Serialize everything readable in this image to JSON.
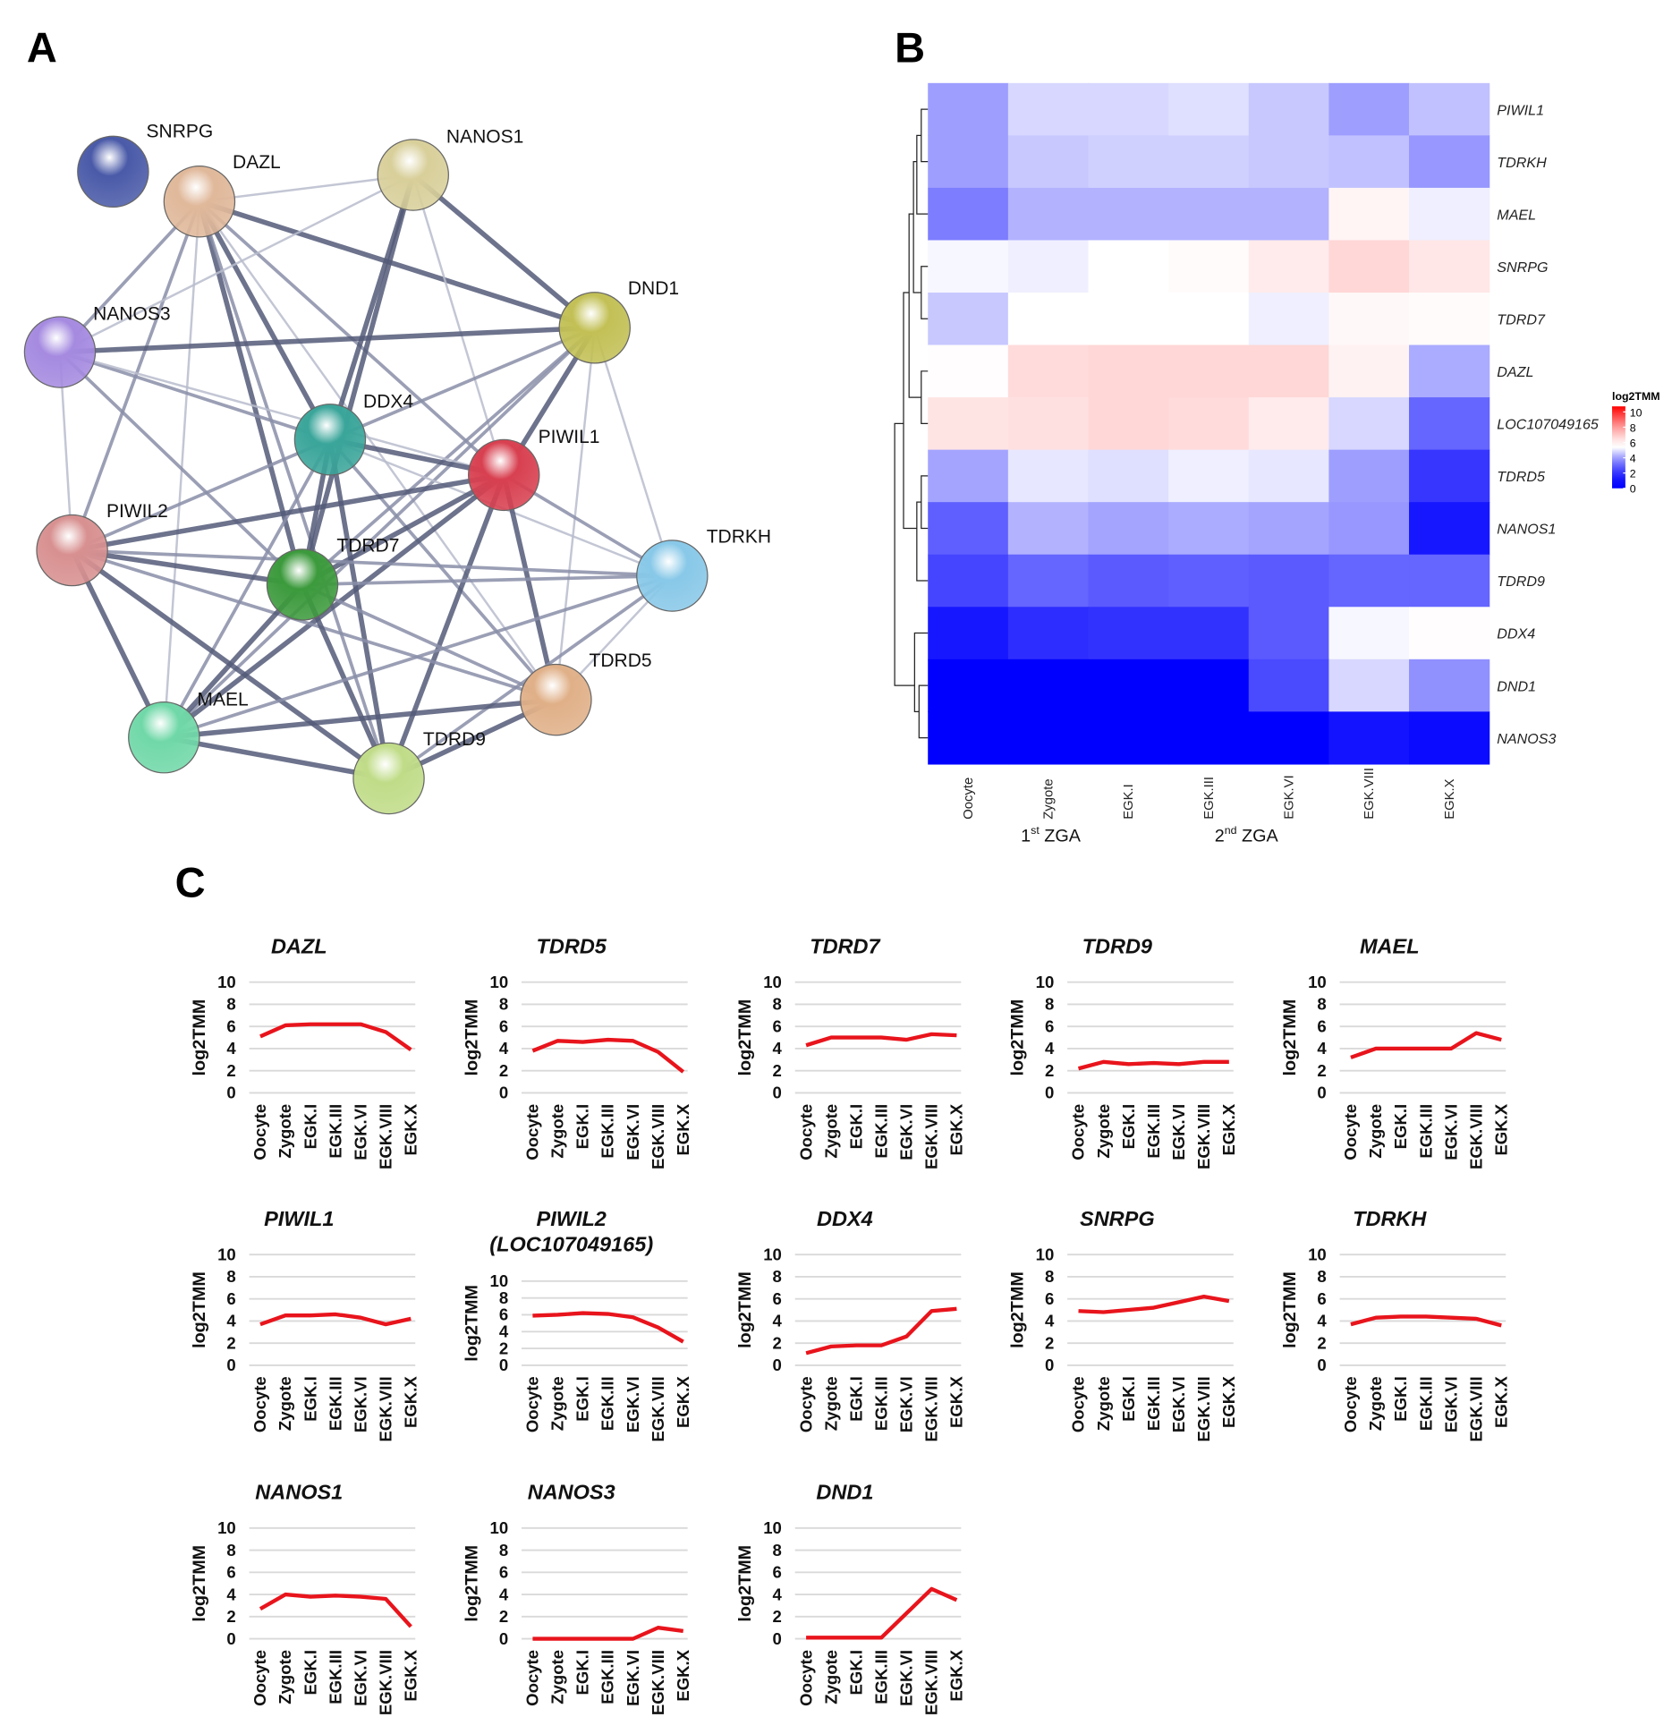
{
  "panels": {
    "a": "A",
    "b": "B",
    "c": "C"
  },
  "network": {
    "nodes": [
      {
        "name": "SNRPG",
        "color": "#4a5aa8"
      },
      {
        "name": "DAZL",
        "color": "#e0b89a"
      },
      {
        "name": "NANOS1",
        "color": "#d8cf9a"
      },
      {
        "name": "DND1",
        "color": "#c2c055"
      },
      {
        "name": "NANOS3",
        "color": "#a58ae0"
      },
      {
        "name": "DDX4",
        "color": "#3aa59a"
      },
      {
        "name": "PIWIL1",
        "color": "#d84050"
      },
      {
        "name": "PIWIL2",
        "color": "#d89090"
      },
      {
        "name": "TDRD7",
        "color": "#3c9a3c"
      },
      {
        "name": "TDRKH",
        "color": "#88c8e8"
      },
      {
        "name": "TDRD5",
        "color": "#e0b088"
      },
      {
        "name": "MAEL",
        "color": "#70d8a8"
      },
      {
        "name": "TDRD9",
        "color": "#c0dc88"
      }
    ],
    "edges": [
      [
        "DAZL",
        "NANOS1",
        1
      ],
      [
        "DAZL",
        "DND1",
        3
      ],
      [
        "DAZL",
        "NANOS3",
        2
      ],
      [
        "DAZL",
        "DDX4",
        3
      ],
      [
        "DAZL",
        "PIWIL1",
        2
      ],
      [
        "DAZL",
        "PIWIL2",
        2
      ],
      [
        "DAZL",
        "TDRD7",
        3
      ],
      [
        "DAZL",
        "MAEL",
        1
      ],
      [
        "DAZL",
        "TDRD9",
        2
      ],
      [
        "DAZL",
        "TDRD5",
        1
      ],
      [
        "NANOS1",
        "DND1",
        3
      ],
      [
        "NANOS1",
        "DDX4",
        3
      ],
      [
        "NANOS1",
        "TDRD7",
        3
      ],
      [
        "NANOS1",
        "PIWIL1",
        1
      ],
      [
        "NANOS1",
        "NANOS3",
        1
      ],
      [
        "DND1",
        "NANOS3",
        3
      ],
      [
        "DND1",
        "DDX4",
        2
      ],
      [
        "DND1",
        "PIWIL1",
        3
      ],
      [
        "DND1",
        "TDRD7",
        2
      ],
      [
        "DND1",
        "MAEL",
        2
      ],
      [
        "DND1",
        "TDRKH",
        1
      ],
      [
        "DND1",
        "TDRD5",
        1
      ],
      [
        "NANOS3",
        "DDX4",
        2
      ],
      [
        "NANOS3",
        "PIWIL2",
        1
      ],
      [
        "NANOS3",
        "TDRD7",
        2
      ],
      [
        "NANOS3",
        "PIWIL1",
        1
      ],
      [
        "DDX4",
        "PIWIL1",
        3
      ],
      [
        "DDX4",
        "PIWIL2",
        2
      ],
      [
        "DDX4",
        "TDRD7",
        3
      ],
      [
        "DDX4",
        "TDRD9",
        3
      ],
      [
        "DDX4",
        "MAEL",
        2
      ],
      [
        "DDX4",
        "TDRD5",
        2
      ],
      [
        "DDX4",
        "TDRKH",
        1
      ],
      [
        "PIWIL1",
        "PIWIL2",
        3
      ],
      [
        "PIWIL1",
        "TDRD7",
        3
      ],
      [
        "PIWIL1",
        "TDRKH",
        2
      ],
      [
        "PIWIL1",
        "TDRD5",
        3
      ],
      [
        "PIWIL1",
        "MAEL",
        3
      ],
      [
        "PIWIL1",
        "TDRD9",
        3
      ],
      [
        "PIWIL2",
        "TDRD7",
        3
      ],
      [
        "PIWIL2",
        "TDRKH",
        2
      ],
      [
        "PIWIL2",
        "TDRD5",
        2
      ],
      [
        "PIWIL2",
        "MAEL",
        3
      ],
      [
        "PIWIL2",
        "TDRD9",
        3
      ],
      [
        "TDRD7",
        "TDRKH",
        2
      ],
      [
        "TDRD7",
        "TDRD5",
        2
      ],
      [
        "TDRD7",
        "MAEL",
        3
      ],
      [
        "TDRD7",
        "TDRD9",
        3
      ],
      [
        "TDRKH",
        "TDRD5",
        1
      ],
      [
        "TDRKH",
        "MAEL",
        2
      ],
      [
        "TDRKH",
        "TDRD9",
        2
      ],
      [
        "TDRD5",
        "MAEL",
        3
      ],
      [
        "TDRD5",
        "TDRD9",
        3
      ],
      [
        "MAEL",
        "TDRD9",
        3
      ]
    ]
  },
  "chart_data": [
    {
      "type": "heatmap",
      "legend_title": "log2TMM",
      "legend_ticks": [
        "10",
        "8",
        "6",
        "4",
        "2",
        "0"
      ],
      "color_scale": {
        "low": "#0000ff",
        "mid": "#ffffff",
        "high": "#ff0000",
        "min": 0,
        "mid_value": 5,
        "max": 10
      },
      "columns": [
        "Oocyte",
        "Zygote",
        "EGK.I",
        "EGK.III",
        "EGK.VI",
        "EGK.VIII",
        "EGK.X"
      ],
      "rows": [
        "PIWIL1",
        "TDRKH",
        "MAEL",
        "SNRPG",
        "TDRD7",
        "DAZL",
        "LOC107049165",
        "TDRD5",
        "NANOS1",
        "TDRD9",
        "DDX4",
        "DND1",
        "NANOS3"
      ],
      "values": [
        [
          3.7,
          4.5,
          4.5,
          4.6,
          4.3,
          3.7,
          4.2
        ],
        [
          3.7,
          4.3,
          4.4,
          4.4,
          4.3,
          4.2,
          3.6
        ],
        [
          3.2,
          4.0,
          4.0,
          4.0,
          4.0,
          5.4,
          4.8
        ],
        [
          4.9,
          4.8,
          5.0,
          5.2,
          5.7,
          6.2,
          5.8
        ],
        [
          4.3,
          5.0,
          5.0,
          5.0,
          4.8,
          5.3,
          5.2
        ],
        [
          5.1,
          6.1,
          6.2,
          6.2,
          6.2,
          5.5,
          3.9
        ],
        [
          5.9,
          6.0,
          6.2,
          6.1,
          5.7,
          4.5,
          2.8
        ],
        [
          3.8,
          4.7,
          4.6,
          4.8,
          4.7,
          3.7,
          1.9
        ],
        [
          2.7,
          4.0,
          3.8,
          3.9,
          3.8,
          3.6,
          1.1
        ],
        [
          2.2,
          2.8,
          2.6,
          2.7,
          2.6,
          2.8,
          2.8
        ],
        [
          1.1,
          1.7,
          1.8,
          1.8,
          2.6,
          4.9,
          5.1
        ],
        [
          0.1,
          0.1,
          0.1,
          0.1,
          2.3,
          4.5,
          3.5
        ],
        [
          0,
          0,
          0,
          0,
          0,
          1.0,
          0.7
        ]
      ],
      "dendrogram": "rows",
      "annotations": [
        {
          "text": "1",
          "sup": "st",
          "rest": " ZGA"
        },
        {
          "text": "2",
          "sup": "nd",
          "rest": " ZGA"
        }
      ]
    },
    {
      "type": "line",
      "ylabel": "log2TMM",
      "ylim": [
        0,
        10
      ],
      "yticks": [
        "0",
        "2",
        "4",
        "6",
        "8",
        "10"
      ],
      "x": [
        "Oocyte",
        "Zygote",
        "EGK.I",
        "EGK.III",
        "EGK.VI",
        "EGK.VIII",
        "EGK.X"
      ],
      "grid": true,
      "line_color": "#e8141c",
      "panels": [
        {
          "title": "DAZL",
          "values": [
            5.1,
            6.1,
            6.2,
            6.2,
            6.2,
            5.5,
            3.9
          ]
        },
        {
          "title": "TDRD5",
          "values": [
            3.8,
            4.7,
            4.6,
            4.8,
            4.7,
            3.7,
            1.9
          ]
        },
        {
          "title": "TDRD7",
          "values": [
            4.3,
            5.0,
            5.0,
            5.0,
            4.8,
            5.3,
            5.2
          ]
        },
        {
          "title": "TDRD9",
          "values": [
            2.2,
            2.8,
            2.6,
            2.7,
            2.6,
            2.8,
            2.8
          ]
        },
        {
          "title": "MAEL",
          "values": [
            3.2,
            4.0,
            4.0,
            4.0,
            4.0,
            5.4,
            4.8
          ]
        },
        {
          "title": "PIWIL1",
          "values": [
            3.7,
            4.5,
            4.5,
            4.6,
            4.3,
            3.7,
            4.2
          ]
        },
        {
          "title": "PIWIL2",
          "subtitle": "(LOC107049165)",
          "values": [
            5.9,
            6.0,
            6.2,
            6.1,
            5.7,
            4.5,
            2.8
          ]
        },
        {
          "title": "DDX4",
          "values": [
            1.1,
            1.7,
            1.8,
            1.8,
            2.6,
            4.9,
            5.1
          ]
        },
        {
          "title": "SNRPG",
          "values": [
            4.9,
            4.8,
            5.0,
            5.2,
            5.7,
            6.2,
            5.8
          ]
        },
        {
          "title": "TDRKH",
          "values": [
            3.7,
            4.3,
            4.4,
            4.4,
            4.3,
            4.2,
            3.6
          ]
        },
        {
          "title": "NANOS1",
          "values": [
            2.7,
            4.0,
            3.8,
            3.9,
            3.8,
            3.6,
            1.1
          ]
        },
        {
          "title": "NANOS3",
          "values": [
            0,
            0,
            0,
            0,
            0,
            1.0,
            0.7
          ]
        },
        {
          "title": "DND1",
          "values": [
            0.1,
            0.1,
            0.1,
            0.1,
            2.3,
            4.5,
            3.5
          ]
        }
      ]
    }
  ]
}
